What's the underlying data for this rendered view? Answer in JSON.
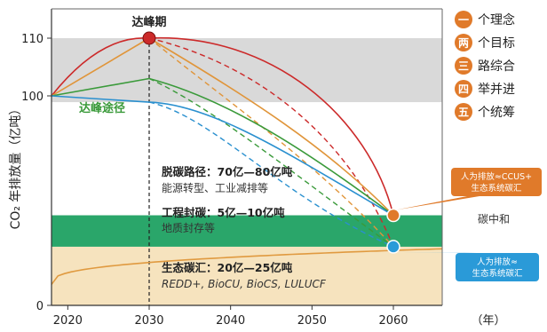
{
  "chart_data": {
    "type": "line",
    "xlabel": "（年）",
    "ylabel": "CO₂ 年排放量（亿吨）",
    "xlim": [
      2018,
      2066
    ],
    "x_ticks": [
      "2020",
      "2030",
      "2040",
      "2050",
      "2060"
    ],
    "y_ticks": [
      "0",
      "100",
      "110"
    ],
    "annotations": {
      "peak": "达峰期",
      "peak_path": "达峰途径",
      "neutral": "碳中和"
    },
    "bands": [
      {
        "id": "ccus",
        "range": [
          28,
          43
        ],
        "title": "工程封碳：5亿—10亿吨",
        "subtitle": "地质封存等",
        "color": "#2aa66a"
      },
      {
        "id": "eco",
        "range": [
          0,
          28
        ],
        "title": "生态碳汇：20亿—25亿吨",
        "subtitle": "REDD+, BioCU, BioCS, LULUCF",
        "color": "#f6e3be"
      },
      {
        "id": "peak_zone",
        "range": [
          97,
          110
        ],
        "color": "#d9d9d9"
      }
    ],
    "decarb_note": {
      "title": "脱碳路径：70亿—80亿吨",
      "subtitle": "能源转型、工业减排等"
    },
    "series": [
      {
        "id": "red",
        "color": "#cc2a2a",
        "peak_year": 2030,
        "peak": 110
      },
      {
        "id": "orange",
        "color": "#e0953a",
        "peak_year": 2030,
        "peak": 110
      },
      {
        "id": "green",
        "color": "#3a9a3a",
        "peak_year": 2030,
        "peak": 103
      },
      {
        "id": "blue",
        "color": "#2a90cf",
        "peak_year": 2030,
        "peak": 97
      }
    ],
    "sink_curve": {
      "color": "#e09a40",
      "start": 10,
      "end": 27
    },
    "endpoints": [
      {
        "year": 2060,
        "value": 43,
        "color": "#e07a2a",
        "label": "人为排放≈CCUS+生态系统碳汇"
      },
      {
        "year": 2060,
        "value": 28,
        "color": "#2a9ad8",
        "label": "人为排放≈生态系统碳汇"
      }
    ],
    "legend": [
      {
        "badge": "一",
        "label": "个理念"
      },
      {
        "badge": "两",
        "label": "个目标"
      },
      {
        "badge": "三",
        "label": "路综合"
      },
      {
        "badge": "四",
        "label": "举并进"
      },
      {
        "badge": "五",
        "label": "个统筹"
      }
    ]
  },
  "colors": {
    "legend_badge": "#e07a2a",
    "gray_band": "#d9d9d9"
  }
}
